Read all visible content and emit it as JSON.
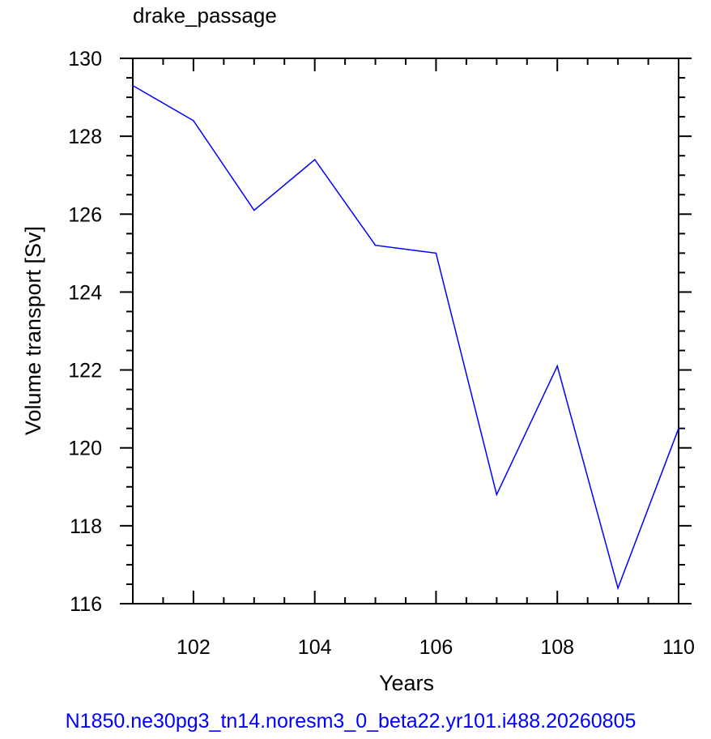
{
  "chart_data": {
    "type": "line",
    "title": "drake_passage",
    "xlabel": "Years",
    "ylabel": "Volume transport [Sv]",
    "footer": "N1850.ne30pg3_tn14.noresm3_0_beta22.yr101.i488.20260805",
    "xlim": [
      101,
      110
    ],
    "ylim": [
      116,
      130
    ],
    "xticks": [
      102,
      104,
      106,
      108,
      110
    ],
    "yticks": [
      116,
      118,
      120,
      122,
      124,
      126,
      128,
      130
    ],
    "series": [
      {
        "x": [
          101,
          102,
          103,
          104,
          105,
          106,
          107,
          108,
          109,
          110
        ],
        "values": [
          129.3,
          128.4,
          126.1,
          127.4,
          125.2,
          125.0,
          118.8,
          122.1,
          116.4,
          120.5
        ]
      }
    ],
    "line_color": "#0000ff",
    "footer_color": "#0000ff",
    "grid": false
  }
}
